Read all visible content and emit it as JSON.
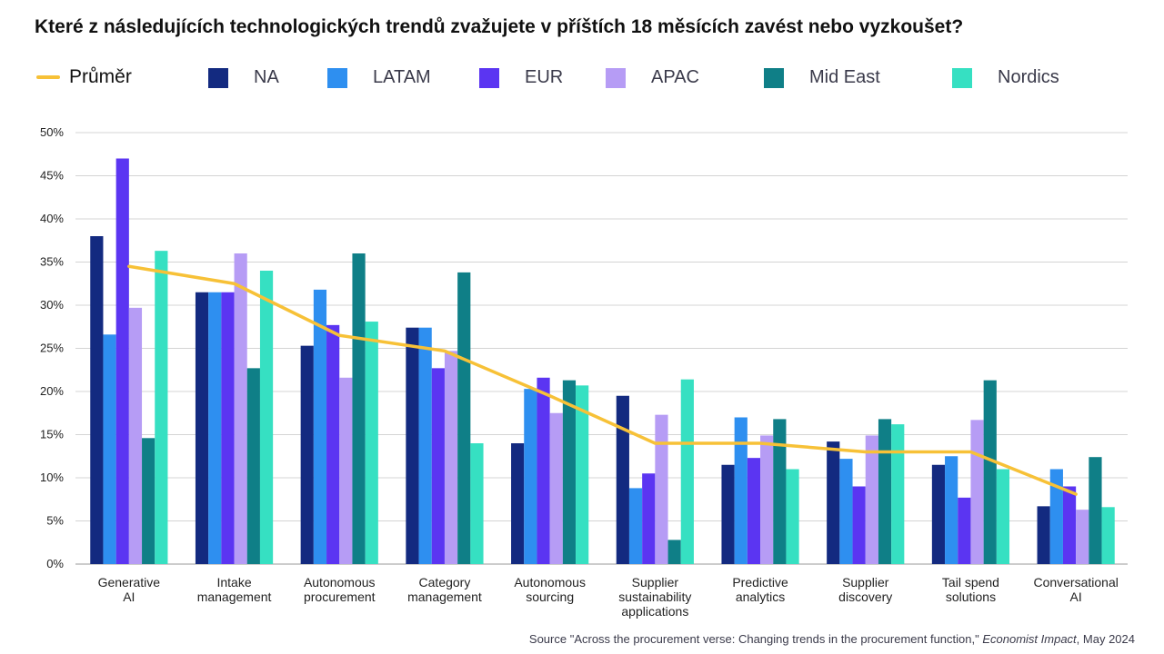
{
  "title": "Které z následujících technologických trendů zvažujete v příštích 18 měsících zavést nebo vyzkoušet?",
  "source": {
    "prefix": "Source \"Across the procurement verse: Changing trends in the procurement function,\" ",
    "publication": "Economist Impact",
    "suffix": ", May 2024"
  },
  "legend": {
    "average_label": "Průměr",
    "average_color": "#f7c137"
  },
  "chart_data": {
    "type": "bar",
    "title": "Které z následujících technologických trendů zvažujete v příštích 18 měsících zavést nebo vyzkoušet?",
    "xlabel": "",
    "ylabel": "",
    "ylim": [
      0,
      50
    ],
    "yticks": [
      0,
      5,
      10,
      15,
      20,
      25,
      30,
      35,
      40,
      45,
      50
    ],
    "ytick_labels": [
      "0%",
      "5%",
      "10%",
      "15%",
      "20%",
      "25%",
      "30%",
      "35%",
      "40%",
      "45%",
      "50%"
    ],
    "grid": true,
    "legend_position": "top",
    "categories": [
      [
        "Generative",
        "AI"
      ],
      [
        "Intake",
        "management"
      ],
      [
        "Autonomous",
        "procurement"
      ],
      [
        "Category",
        "management"
      ],
      [
        "Autonomous",
        "sourcing"
      ],
      [
        "Supplier",
        "sustainability",
        "applications"
      ],
      [
        "Predictive",
        "analytics"
      ],
      [
        "Supplier",
        "discovery"
      ],
      [
        "Tail spend",
        "solutions"
      ],
      [
        "Conversational",
        "AI"
      ]
    ],
    "series": [
      {
        "name": "NA",
        "color": "#132a80",
        "values": [
          38,
          31.5,
          25.3,
          27.4,
          14,
          19.5,
          11.5,
          14.2,
          11.5,
          6.7
        ]
      },
      {
        "name": "LATAM",
        "color": "#2e8ff0",
        "values": [
          26.6,
          31.5,
          31.8,
          27.4,
          20.3,
          8.8,
          17,
          12.2,
          12.5,
          11
        ]
      },
      {
        "name": "EUR",
        "color": "#5b35f2",
        "values": [
          47,
          31.5,
          27.7,
          22.7,
          21.6,
          10.5,
          12.3,
          9,
          7.7,
          9
        ]
      },
      {
        "name": "APAC",
        "color": "#b69cf5",
        "values": [
          29.7,
          36,
          21.6,
          24.7,
          17.5,
          17.3,
          14.9,
          14.9,
          16.7,
          6.3
        ]
      },
      {
        "name": "Mid East",
        "color": "#0f7f87",
        "values": [
          14.6,
          22.7,
          36,
          33.8,
          21.3,
          2.8,
          16.8,
          16.8,
          21.3,
          12.4
        ]
      },
      {
        "name": "Nordics",
        "color": "#36e0c2",
        "values": [
          36.3,
          34,
          28.1,
          14,
          20.7,
          21.4,
          11,
          16.2,
          11,
          6.6
        ]
      }
    ],
    "average": {
      "name": "Průměr",
      "values": [
        34.5,
        32.5,
        26.5,
        24.7,
        19.5,
        14,
        14,
        13,
        13,
        8.1
      ]
    }
  }
}
